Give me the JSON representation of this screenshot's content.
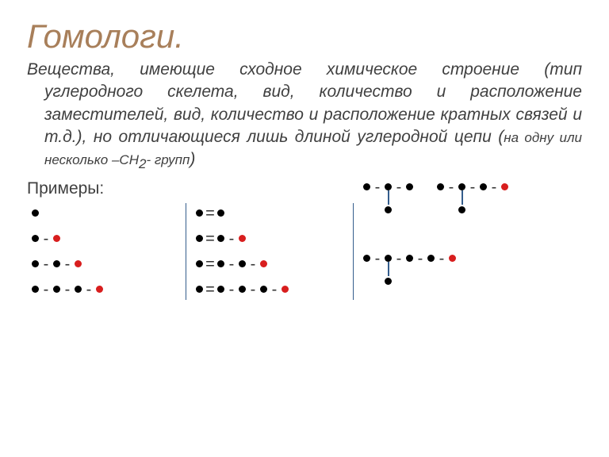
{
  "title": {
    "text": "Гомологи.",
    "color": "#a87f5a",
    "fontsize": 42
  },
  "definition": {
    "text_main": "Вещества, имеющие сходное химическое строение (тип углеродного скелета, вид, количество и расположение заместителей, вид, количество и расположение кратных связей и т.д.), но отличающиеся лишь длиной углеродной цепи (",
    "text_small": "на одну или несколько –CH",
    "sub": "2",
    "text_small_after": "- групп",
    "text_close": ")",
    "color": "#404040",
    "fontsize": 21
  },
  "examples_label": {
    "text": "Примеры:",
    "color": "#404040",
    "fontsize": 21
  },
  "colors": {
    "black": "#000000",
    "red": "#d81e1e",
    "vline": "#345d8c",
    "branch": "#345d8c"
  },
  "geom": {
    "dot_size": 9,
    "single_bond": "-",
    "double_bond": "=",
    "bond_width": 18,
    "vline_width": 1.5
  },
  "col1": {
    "rows": [
      {
        "dots": [
          "black"
        ],
        "bonds": []
      },
      {
        "dots": [
          "black",
          "red"
        ],
        "bonds": [
          "-"
        ]
      },
      {
        "dots": [
          "black",
          "black",
          "red"
        ],
        "bonds": [
          "-",
          "-"
        ]
      },
      {
        "dots": [
          "black",
          "black",
          "black",
          "red"
        ],
        "bonds": [
          "-",
          "-",
          "-"
        ]
      }
    ]
  },
  "col2": {
    "rows": [
      {
        "dots": [
          "black",
          "black"
        ],
        "bonds": [
          "="
        ]
      },
      {
        "dots": [
          "black",
          "black",
          "red"
        ],
        "bonds": [
          "=",
          "-"
        ]
      },
      {
        "dots": [
          "black",
          "black",
          "black",
          "red"
        ],
        "bonds": [
          "=",
          "-",
          "-"
        ]
      },
      {
        "dots": [
          "black",
          "black",
          "black",
          "black",
          "red"
        ],
        "bonds": [
          "=",
          "-",
          "-",
          "-"
        ]
      }
    ]
  },
  "col3": {
    "pair_top": {
      "left": {
        "dots": [
          "black",
          "black",
          "black"
        ],
        "bonds": [
          "-",
          "-"
        ],
        "branch_at": 1,
        "branch_color": "black"
      },
      "right": {
        "dots": [
          "black",
          "black",
          "black",
          "red"
        ],
        "bonds": [
          "-",
          "-",
          "-"
        ],
        "branch_at": 1,
        "branch_color": "black"
      }
    },
    "bottom": {
      "dots": [
        "black",
        "black",
        "black",
        "black",
        "red"
      ],
      "bonds": [
        "-",
        "-",
        "-",
        "-"
      ],
      "branch_at": 1,
      "branch_color": "black"
    }
  }
}
